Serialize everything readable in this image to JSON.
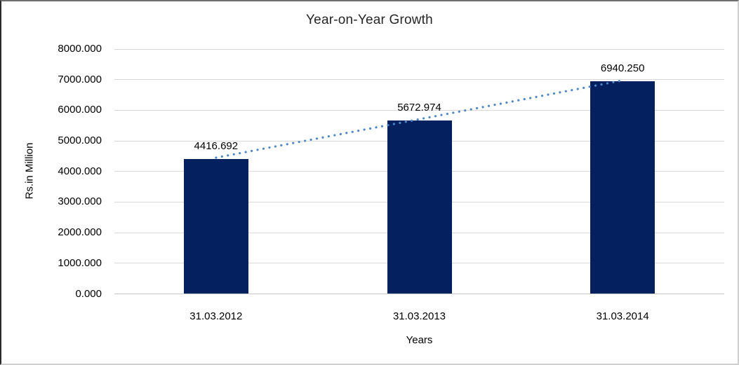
{
  "chart_data": {
    "type": "bar",
    "title": "Year-on-Year Growth",
    "xlabel": "Years",
    "ylabel": "Rs.in Million",
    "categories": [
      "31.03.2012",
      "31.03.2013",
      "31.03.2014"
    ],
    "values": [
      4416.692,
      5672.974,
      6940.25
    ],
    "value_labels": [
      "4416.692",
      "5672.974",
      "6940.250"
    ],
    "ylim": [
      0,
      8000
    ],
    "ytick_step": 1000,
    "ytick_labels": [
      "0.000",
      "1000.000",
      "2000.000",
      "3000.000",
      "4000.000",
      "5000.000",
      "6000.000",
      "7000.000",
      "8000.000"
    ],
    "grid": true,
    "legend": "none",
    "bar_color": "#04205e",
    "gridline_color": "#d9d9d9",
    "trendline": {
      "style": "dotted",
      "color": "#4f86c6"
    }
  }
}
